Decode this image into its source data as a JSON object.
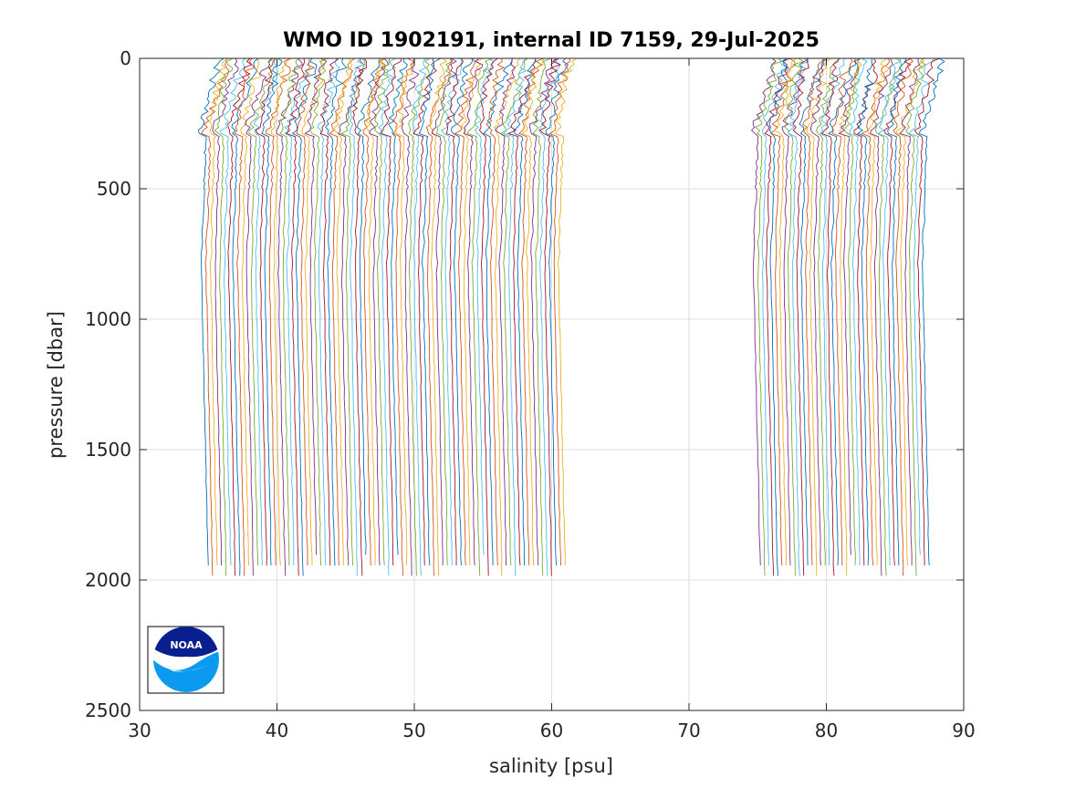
{
  "chart_data": {
    "type": "line",
    "title": "WMO ID 1902191, internal ID 7159, 29-Jul-2025",
    "xlabel": "salinity [psu]",
    "ylabel": "pressure [dbar]",
    "xlim": [
      30,
      90
    ],
    "ylim": [
      0,
      2500
    ],
    "y_reversed": true,
    "grid": true,
    "x_ticks": [
      "30",
      "40",
      "50",
      "60",
      "70",
      "80",
      "90"
    ],
    "y_ticks": [
      "0",
      "500",
      "1000",
      "1500",
      "2000",
      "2500"
    ],
    "series_groups": [
      {
        "count": 80,
        "deep_salinity_start": 35.0,
        "deep_salinity_end": 61.0,
        "max_pressure": 2000
      },
      {
        "count": 40,
        "deep_salinity_start": 75.2,
        "deep_salinity_end": 87.5,
        "max_pressure": 2000
      }
    ],
    "series_colors": [
      "#0072BD",
      "#D95319",
      "#EDB120",
      "#7E2F8E",
      "#77AC30",
      "#4DBEEE",
      "#A2142F"
    ],
    "logo": {
      "text": "NOAA",
      "colors": [
        "#0a1f8f",
        "#0b9af0"
      ]
    }
  }
}
